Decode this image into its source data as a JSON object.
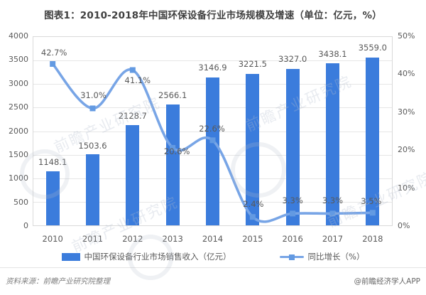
{
  "page": {
    "title": "图表1：2010-2018年中国环保设备行业市场规模及增速（单位：亿元，%）"
  },
  "chart_data": {
    "type": "bar",
    "subtype": "combo-bar-line-dual-axis",
    "title": "图表1：2010-2018年中国环保设备行业市场规模及增速（单位：亿元，%）",
    "categories": [
      "2010",
      "2011",
      "2012",
      "2013",
      "2014",
      "2015",
      "2016",
      "2017",
      "2018"
    ],
    "series": [
      {
        "name": "中国环保设备行业市场销售收入（亿元）",
        "type": "bar",
        "axis": "left",
        "values": [
          1148.1,
          1503.6,
          2128.7,
          2566.1,
          3146.9,
          3221.5,
          3327.0,
          3438.1,
          3559.0
        ],
        "labels": [
          "1148.1",
          "1503.6",
          "2128.7",
          "2566.1",
          "3146.9",
          "3221.5",
          "3327.0",
          "3438.1",
          "3559.0"
        ]
      },
      {
        "name": "同比增长（%）",
        "type": "line",
        "axis": "right",
        "values": [
          42.7,
          31.0,
          41.1,
          20.6,
          22.6,
          2.4,
          3.3,
          3.3,
          3.5
        ],
        "labels": [
          "42.7%",
          "31.0%",
          "41.1%",
          "20.6%",
          "22.6%",
          "2.4%",
          "3.3%",
          "3.3%",
          "3.5%"
        ]
      }
    ],
    "left_axis": {
      "min": 0,
      "max": 4000,
      "step": 500,
      "ticks": [
        "4000",
        "3500",
        "3000",
        "2500",
        "2000",
        "1500",
        "1000",
        "500",
        "0"
      ]
    },
    "right_axis": {
      "min": 0,
      "max": 50,
      "step": 10,
      "ticks": [
        "50%",
        "40%",
        "30%",
        "20%",
        "10%",
        "0%"
      ]
    },
    "grid": true,
    "legend_position": "bottom"
  },
  "colors": {
    "bar": "#3B7CDC",
    "line": "#78A5E6",
    "marker": "#639AE2",
    "label": "#595959",
    "grid": "#E6E6E6",
    "border": "#D9D9D9"
  },
  "footer": {
    "source": "资料来源：前瞻产业研究院整理",
    "credit": "@前瞻经济学人APP"
  },
  "watermark": {
    "text": "前瞻产业研究院"
  }
}
